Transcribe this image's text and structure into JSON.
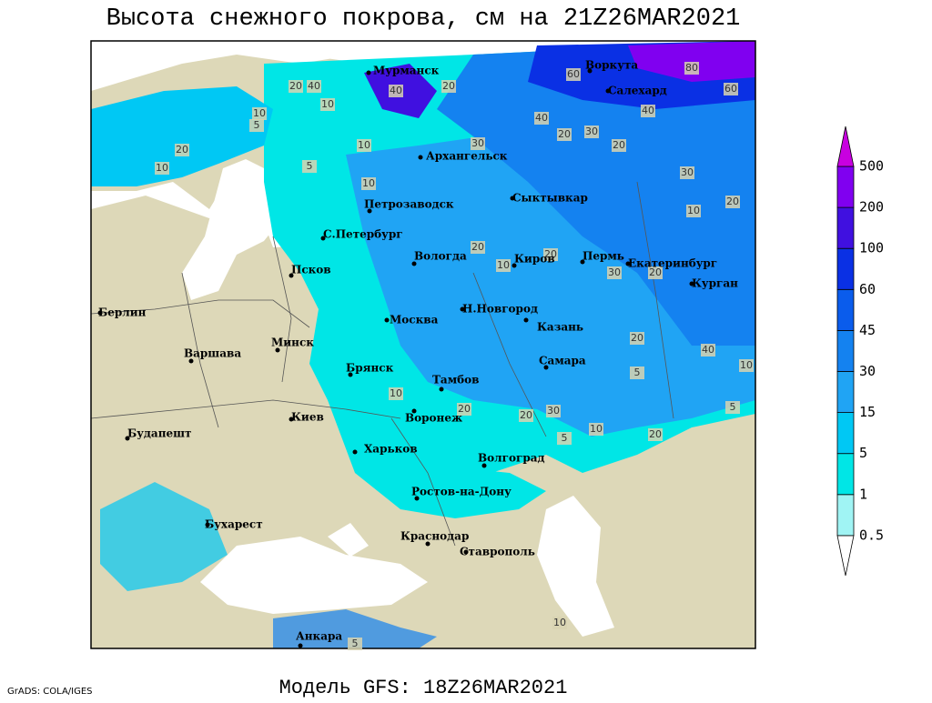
{
  "title": "Высота снежного покрова, см на 21Z26MAR2021",
  "footer": "Модель GFS: 18Z26MAR2021",
  "credit": "GrADS: COLA/IGES",
  "cities": [
    "Мурманск",
    "Воркута",
    "Салехард",
    "Архангельск",
    "Сыктывкар",
    "Петрозаводск",
    "С.Петербург",
    "Вологда",
    "Киров",
    "Пермь",
    "Екатеринбург",
    "Курган",
    "Псков",
    "Н.Новгород",
    "Казань",
    "Москва",
    "Минск",
    "Берлин",
    "Варшава",
    "Брянск",
    "Тамбов",
    "Самара",
    "Воронеж",
    "Киев",
    "Будапешт",
    "Харьков",
    "Волгоград",
    "Ростов-на-Дону",
    "Бухарест",
    "Краснодар",
    "Ставрополь",
    "Анкара"
  ],
  "contour_labels": [
    20,
    40,
    10,
    40,
    20,
    60,
    80,
    60,
    40,
    10,
    5,
    20,
    10,
    5,
    10,
    30,
    40,
    20,
    30,
    20,
    30,
    10,
    20,
    10,
    20,
    10,
    20,
    30,
    20,
    40,
    20,
    5,
    10,
    10,
    20,
    30,
    20,
    10,
    20,
    5,
    5,
    10,
    5
  ],
  "colorbar": {
    "levels": [
      0.5,
      1,
      5,
      15,
      30,
      45,
      60,
      100,
      200,
      500
    ],
    "colors": [
      "#ffffff",
      "#a0f4f4",
      "#00e6e6",
      "#00c8f4",
      "#20a4f4",
      "#1482f0",
      "#0a5cec",
      "#0a30e4",
      "#4010e0",
      "#8000f0",
      "#c800e0"
    ]
  }
}
